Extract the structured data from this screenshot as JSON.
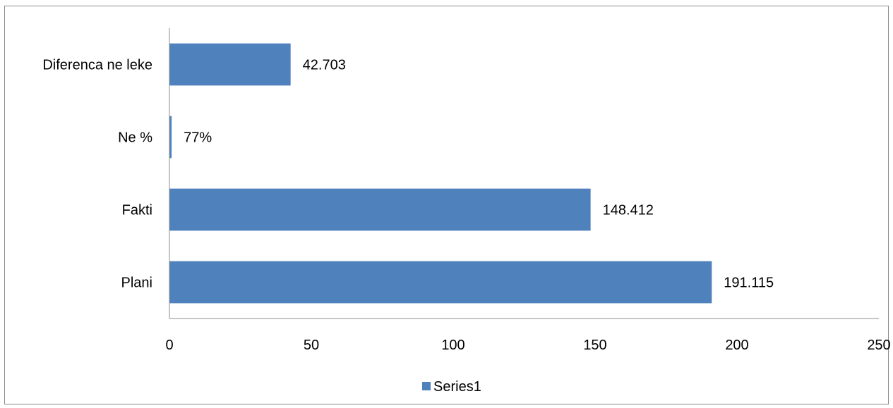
{
  "chart_data": {
    "type": "bar",
    "orientation": "horizontal",
    "categories": [
      "Plani",
      "Fakti",
      "Ne %",
      "Diferenca ne leke"
    ],
    "series": [
      {
        "name": "Series1",
        "values": [
          191.115,
          148.412,
          0.77,
          42.703
        ],
        "data_labels": [
          "191.115",
          "148.412",
          "77%",
          "42.703"
        ],
        "color": "#4F81BD"
      }
    ],
    "xlim": [
      0,
      250
    ],
    "xticks": [
      "0",
      "50",
      "100",
      "150",
      "200",
      "250"
    ],
    "grid": false,
    "legend_position": "bottom"
  }
}
